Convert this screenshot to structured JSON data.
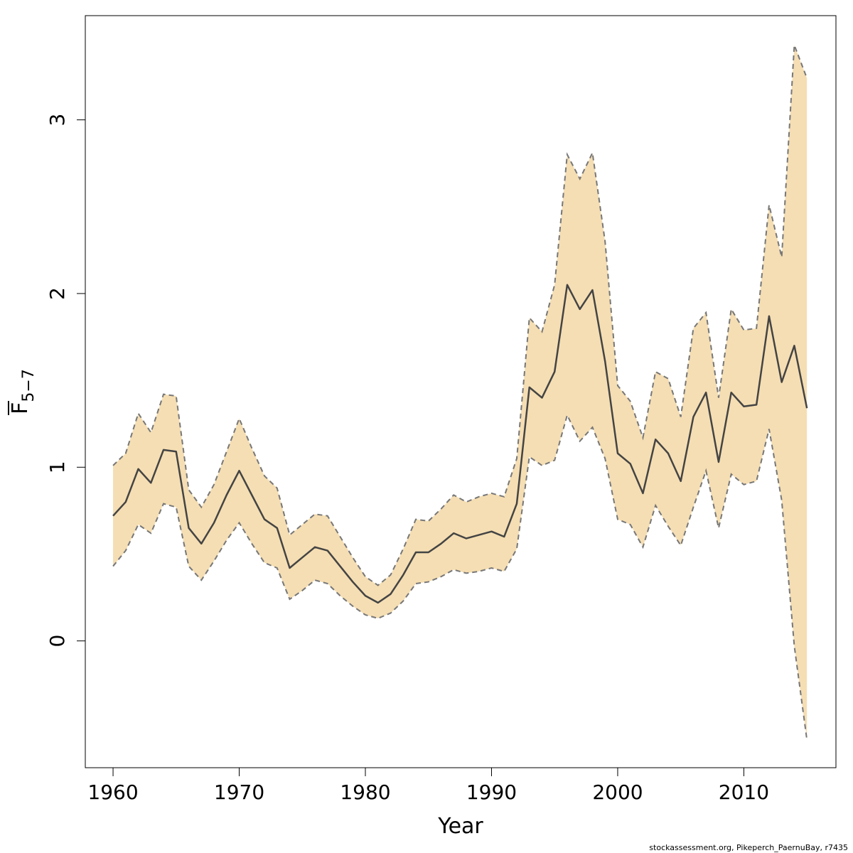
{
  "chart_data": {
    "type": "line",
    "xlabel": "Year",
    "ylabel": {
      "main": "F",
      "subscript": "5−7"
    },
    "xlim": [
      1957.8,
      2017.3
    ],
    "ylim": [
      -0.73,
      3.6
    ],
    "x_ticks": [
      1960,
      1970,
      1980,
      1990,
      2000,
      2010
    ],
    "y_ticks": [
      0,
      1,
      2,
      3
    ],
    "band_color": "#f5deb3",
    "band_edge_color": "#777777",
    "line_color": "#444444",
    "x": [
      1960,
      1961,
      1962,
      1963,
      1964,
      1965,
      1966,
      1967,
      1968,
      1969,
      1970,
      1971,
      1972,
      1973,
      1974,
      1975,
      1976,
      1977,
      1978,
      1979,
      1980,
      1981,
      1982,
      1983,
      1984,
      1985,
      1986,
      1987,
      1988,
      1989,
      1990,
      1991,
      1992,
      1993,
      1994,
      1995,
      1996,
      1997,
      1998,
      1999,
      2000,
      2001,
      2002,
      2003,
      2004,
      2005,
      2006,
      2007,
      2008,
      2009,
      2010,
      2011,
      2012,
      2013,
      2014,
      2015
    ],
    "series": [
      {
        "role": "estimate",
        "values": [
          0.72,
          0.8,
          0.99,
          0.91,
          1.1,
          1.09,
          0.65,
          0.56,
          0.68,
          0.84,
          0.98,
          0.84,
          0.7,
          0.65,
          0.42,
          0.48,
          0.54,
          0.52,
          0.43,
          0.34,
          0.26,
          0.22,
          0.27,
          0.38,
          0.51,
          0.51,
          0.56,
          0.62,
          0.59,
          0.61,
          0.63,
          0.6,
          0.79,
          1.46,
          1.4,
          1.55,
          2.05,
          1.91,
          2.02,
          1.61,
          1.08,
          1.02,
          0.85,
          1.16,
          1.08,
          0.92,
          1.29,
          1.43,
          1.03,
          1.43,
          1.35,
          1.36,
          1.87,
          1.49,
          1.7,
          1.34
        ]
      },
      {
        "role": "upper",
        "values": [
          1.01,
          1.08,
          1.31,
          1.2,
          1.42,
          1.41,
          0.87,
          0.77,
          0.9,
          1.09,
          1.28,
          1.11,
          0.95,
          0.88,
          0.61,
          0.67,
          0.73,
          0.72,
          0.6,
          0.48,
          0.37,
          0.32,
          0.38,
          0.53,
          0.7,
          0.69,
          0.76,
          0.84,
          0.8,
          0.83,
          0.85,
          0.83,
          1.05,
          1.86,
          1.78,
          2.05,
          2.8,
          2.66,
          2.81,
          2.3,
          1.47,
          1.38,
          1.17,
          1.55,
          1.51,
          1.29,
          1.8,
          1.89,
          1.4,
          1.91,
          1.79,
          1.8,
          2.51,
          2.21,
          3.43,
          3.24
        ]
      },
      {
        "role": "lower",
        "values": [
          0.43,
          0.52,
          0.67,
          0.62,
          0.79,
          0.77,
          0.43,
          0.35,
          0.46,
          0.58,
          0.68,
          0.56,
          0.45,
          0.42,
          0.24,
          0.29,
          0.35,
          0.33,
          0.26,
          0.2,
          0.15,
          0.13,
          0.16,
          0.23,
          0.33,
          0.34,
          0.37,
          0.41,
          0.39,
          0.4,
          0.42,
          0.4,
          0.53,
          1.06,
          1.01,
          1.04,
          1.3,
          1.15,
          1.23,
          1.05,
          0.7,
          0.67,
          0.54,
          0.78,
          0.66,
          0.55,
          0.77,
          0.98,
          0.65,
          0.96,
          0.9,
          0.92,
          1.22,
          0.81,
          -0.03,
          -0.57
        ]
      }
    ]
  },
  "credit": "stockassessment.org, Pikeperch_PaernuBay, r7435"
}
